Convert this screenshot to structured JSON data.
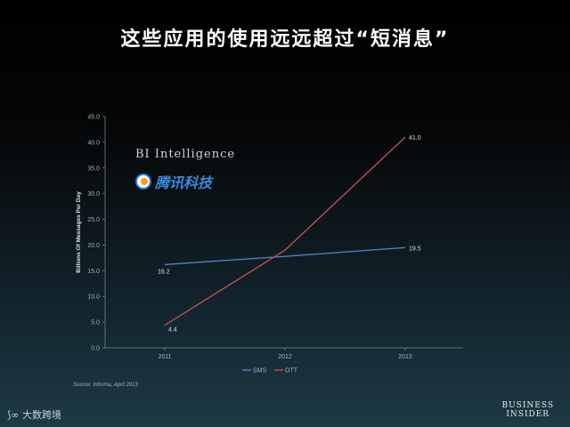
{
  "header": {
    "title": "这些应用的使用远远超过“短消息”"
  },
  "chart_data": {
    "type": "line",
    "categories": [
      "2011",
      "2012",
      "2013"
    ],
    "series": [
      {
        "name": "SMS",
        "values": [
          16.2,
          17.8,
          19.5
        ],
        "color": "#4f81bd",
        "labels": [
          "16.2",
          "",
          "19.5"
        ]
      },
      {
        "name": "OTT",
        "values": [
          4.4,
          19.0,
          41.0
        ],
        "color": "#c0504d",
        "labels": [
          "4.4",
          "",
          "41.0"
        ]
      }
    ],
    "ylabel": "Billions Of Messages Per Day",
    "ylim": [
      0,
      45
    ],
    "yticks": [
      "0.0",
      "5.0",
      "10.0",
      "15.0",
      "20.0",
      "25.0",
      "30.0",
      "35.0",
      "40.0",
      "45.0"
    ],
    "legend_position": "bottom-center",
    "grid": false
  },
  "branding": {
    "bi_intelligence": "BI Intelligence",
    "tencent": "腾讯科技",
    "source": "Source: Informa, April 2013",
    "watermark": "大数跨境",
    "business_insider_line1": "BUSINESS",
    "business_insider_line2": "INSIDER"
  }
}
